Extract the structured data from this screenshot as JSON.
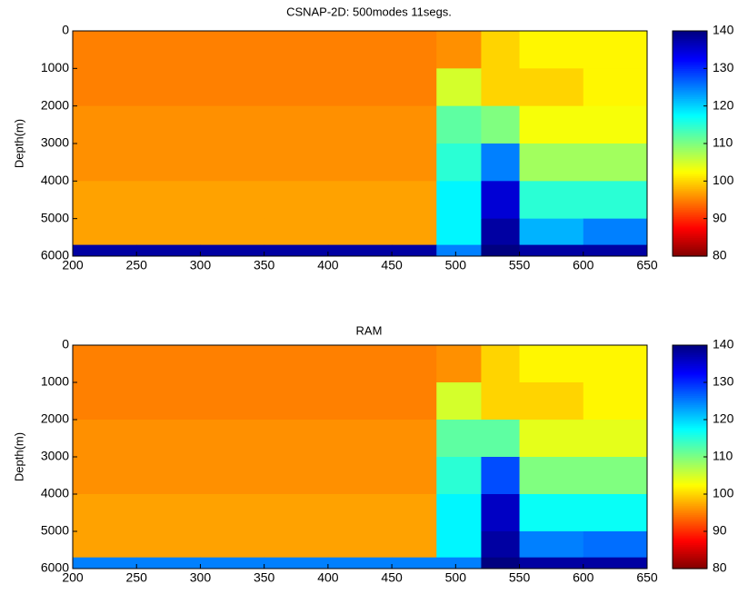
{
  "chart_data": [
    {
      "type": "heatmap",
      "title": "CSNAP-2D: 500modes 11segs.",
      "y_label": "Depth(m)",
      "xlim": [
        200,
        650
      ],
      "xticks": [
        200,
        250,
        300,
        350,
        400,
        450,
        500,
        550,
        600,
        650
      ],
      "ylim": [
        0,
        6000
      ],
      "y_reversed": true,
      "yticks": [
        0,
        1000,
        2000,
        3000,
        4000,
        5000,
        6000
      ],
      "x_bins": [
        200,
        250,
        300,
        350,
        400,
        450,
        485,
        520,
        550,
        600,
        650
      ],
      "y_bins": [
        0,
        1000,
        2000,
        3000,
        4000,
        5000,
        5700,
        6000
      ],
      "values": [
        [
          95,
          95,
          95,
          95,
          95,
          95,
          96,
          100,
          102,
          102
        ],
        [
          95,
          95,
          95,
          95,
          95,
          95,
          105,
          100,
          100,
          102
        ],
        [
          96,
          96,
          96,
          96,
          96,
          96,
          112,
          110,
          103,
          103
        ],
        [
          96,
          96,
          96,
          96,
          96,
          96,
          115,
          125,
          108,
          108
        ],
        [
          97,
          97,
          97,
          97,
          97,
          97,
          118,
          135,
          115,
          115
        ],
        [
          97,
          97,
          97,
          97,
          97,
          97,
          118,
          138,
          122,
          125
        ],
        [
          138,
          138,
          138,
          138,
          138,
          138,
          125,
          140,
          138,
          138
        ]
      ],
      "colormap": "jet_r",
      "clim": [
        80,
        140
      ],
      "cticks": [
        80,
        90,
        100,
        110,
        120,
        130,
        140
      ]
    },
    {
      "type": "heatmap",
      "title": "RAM",
      "y_label": "Depth(m)",
      "xlim": [
        200,
        650
      ],
      "xticks": [
        200,
        250,
        300,
        350,
        400,
        450,
        500,
        550,
        600,
        650
      ],
      "ylim": [
        0,
        6000
      ],
      "y_reversed": true,
      "yticks": [
        0,
        1000,
        2000,
        3000,
        4000,
        5000,
        6000
      ],
      "x_bins": [
        200,
        250,
        300,
        350,
        400,
        450,
        485,
        520,
        550,
        600,
        650
      ],
      "y_bins": [
        0,
        1000,
        2000,
        3000,
        4000,
        5000,
        5700,
        6000
      ],
      "values": [
        [
          95,
          95,
          95,
          95,
          95,
          95,
          96,
          100,
          102,
          102
        ],
        [
          95,
          95,
          95,
          95,
          95,
          95,
          105,
          100,
          100,
          102
        ],
        [
          96,
          96,
          96,
          96,
          96,
          96,
          112,
          112,
          104,
          104
        ],
        [
          96,
          96,
          96,
          96,
          96,
          96,
          115,
          128,
          110,
          110
        ],
        [
          97,
          97,
          97,
          97,
          97,
          97,
          118,
          136,
          117,
          117
        ],
        [
          97,
          97,
          97,
          97,
          97,
          97,
          118,
          138,
          125,
          126
        ],
        [
          125,
          125,
          125,
          125,
          125,
          125,
          125,
          140,
          138,
          138
        ]
      ],
      "colormap": "jet_r",
      "clim": [
        80,
        140
      ],
      "cticks": [
        80,
        90,
        100,
        110,
        120,
        130,
        140
      ]
    }
  ]
}
